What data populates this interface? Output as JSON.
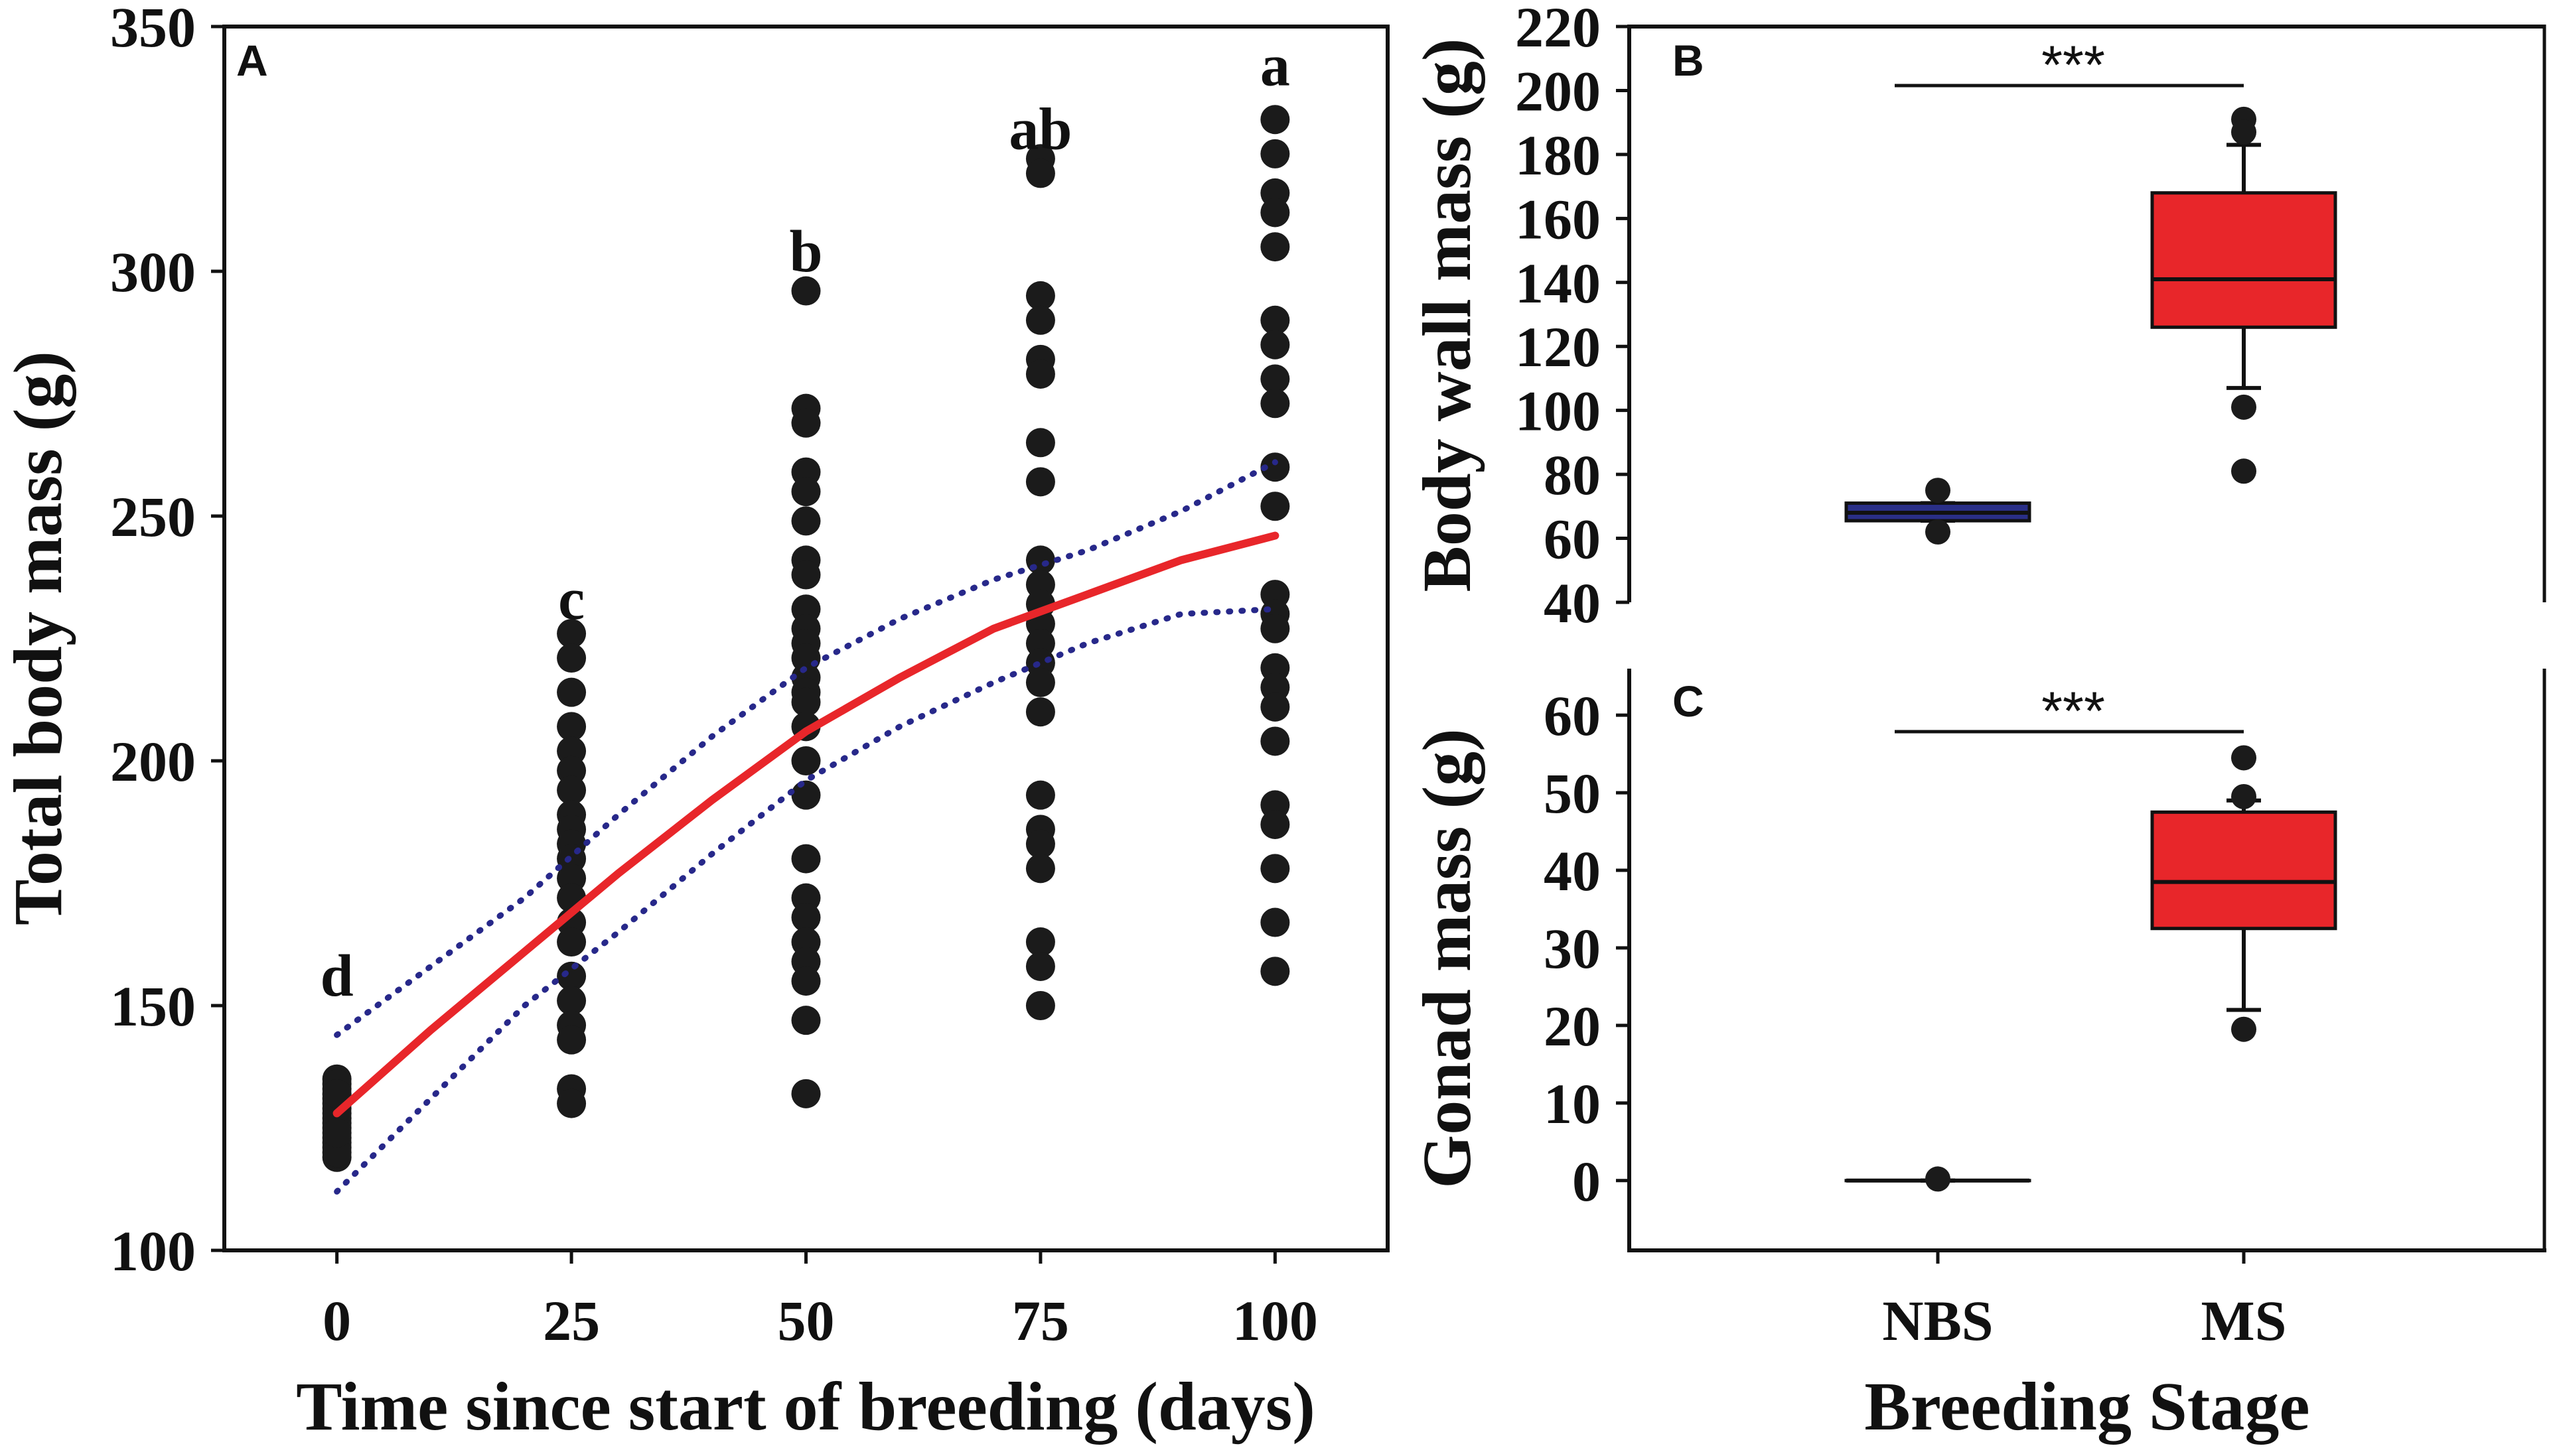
{
  "chart_data": [
    {
      "panel": "A",
      "type": "scatter",
      "xlabel": "Time since start of breeding (days)",
      "ylabel": "Total body mass (g)",
      "xlim": [
        -12,
        112
      ],
      "ylim": [
        100,
        350
      ],
      "xticks": [
        0,
        25,
        50,
        75,
        100
      ],
      "yticks": [
        100,
        150,
        200,
        250,
        300,
        350
      ],
      "grid": false,
      "groups": [
        {
          "x": 0,
          "letter": "d",
          "letter_y": 152,
          "values": [
            135,
            133,
            131,
            129,
            127,
            125,
            123,
            121,
            119,
            134,
            130,
            126,
            122,
            120,
            128,
            132,
            124
          ]
        },
        {
          "x": 25,
          "letter": "c",
          "letter_y": 229,
          "values": [
            226,
            221,
            214,
            207,
            202,
            198,
            194,
            189,
            186,
            183,
            180,
            176,
            172,
            167,
            163,
            156,
            151,
            146,
            143,
            133,
            130
          ]
        },
        {
          "x": 50,
          "letter": "b",
          "letter_y": 300,
          "values": [
            296,
            272,
            269,
            259,
            255,
            249,
            241,
            238,
            231,
            227,
            224,
            221,
            217,
            214,
            212,
            207,
            200,
            193,
            180,
            172,
            168,
            163,
            159,
            155,
            147,
            132
          ]
        },
        {
          "x": 75,
          "letter": "ab",
          "letter_y": 325,
          "values": [
            323,
            320,
            295,
            290,
            282,
            279,
            265,
            257,
            241,
            236,
            232,
            228,
            224,
            220,
            216,
            210,
            193,
            186,
            183,
            178,
            163,
            158,
            150
          ]
        },
        {
          "x": 100,
          "letter": "a",
          "letter_y": 338,
          "values": [
            331,
            324,
            316,
            312,
            305,
            290,
            285,
            278,
            273,
            260,
            252,
            234,
            230,
            227,
            219,
            215,
            211,
            204,
            191,
            187,
            178,
            167,
            157
          ]
        }
      ],
      "fit": {
        "name": "fitted curve",
        "color": "#e8262a",
        "x": [
          0,
          10,
          20,
          30,
          40,
          50,
          60,
          70,
          80,
          90,
          100
        ],
        "y": [
          128,
          145,
          161,
          177,
          192,
          206,
          217,
          227,
          234,
          241,
          246
        ]
      },
      "ci_upper": {
        "name": "95% confidence band (upper)",
        "color": "#27288a",
        "x": [
          0,
          10,
          20,
          30,
          40,
          50,
          60,
          70,
          80,
          90,
          100
        ],
        "y": [
          144,
          158,
          172,
          189,
          205,
          219,
          229,
          237,
          243,
          251,
          261
        ]
      },
      "ci_lower": {
        "name": "95% confidence band (lower)",
        "color": "#27288a",
        "x": [
          0,
          10,
          20,
          30,
          40,
          50,
          60,
          70,
          80,
          90,
          100
        ],
        "y": [
          112,
          131,
          150,
          165,
          181,
          196,
          207,
          216,
          224,
          230,
          231
        ]
      }
    },
    {
      "panel": "B",
      "type": "box",
      "xlabel": "",
      "ylabel": "Body wall mass (g)",
      "ylim": [
        40,
        220
      ],
      "yticks": [
        40,
        60,
        80,
        100,
        120,
        140,
        160,
        180,
        200,
        220
      ],
      "categories": [
        "NBS",
        "MS"
      ],
      "significance": "***",
      "boxes": [
        {
          "name": "NBS",
          "color": "#2a2f87",
          "q1": 65.5,
          "median": 68,
          "q3": 71,
          "whisker_low": 65.5,
          "whisker_high": 71,
          "outliers": [
            75,
            62
          ]
        },
        {
          "name": "MS",
          "color": "#e8262a",
          "q1": 126,
          "median": 141,
          "q3": 168,
          "whisker_low": 107,
          "whisker_high": 183,
          "outliers": [
            191,
            187,
            101,
            81
          ]
        }
      ]
    },
    {
      "panel": "C",
      "type": "box",
      "xlabel": "Breeding Stage",
      "ylabel": "Gonad mass (g)",
      "ylim": [
        -9,
        66
      ],
      "yticks": [
        0,
        10,
        20,
        30,
        40,
        50,
        60
      ],
      "categories": [
        "NBS",
        "MS"
      ],
      "significance": "***",
      "boxes": [
        {
          "name": "NBS",
          "color": "#2a2f87",
          "q1": 0,
          "median": 0,
          "q3": 0,
          "whisker_low": 0,
          "whisker_high": 0,
          "outliers": [
            0.2
          ]
        },
        {
          "name": "MS",
          "color": "#e8262a",
          "q1": 32.5,
          "median": 38.5,
          "q3": 47.5,
          "whisker_low": 22,
          "whisker_high": 49,
          "outliers": [
            54.5,
            49.5,
            19.5
          ]
        }
      ]
    }
  ]
}
